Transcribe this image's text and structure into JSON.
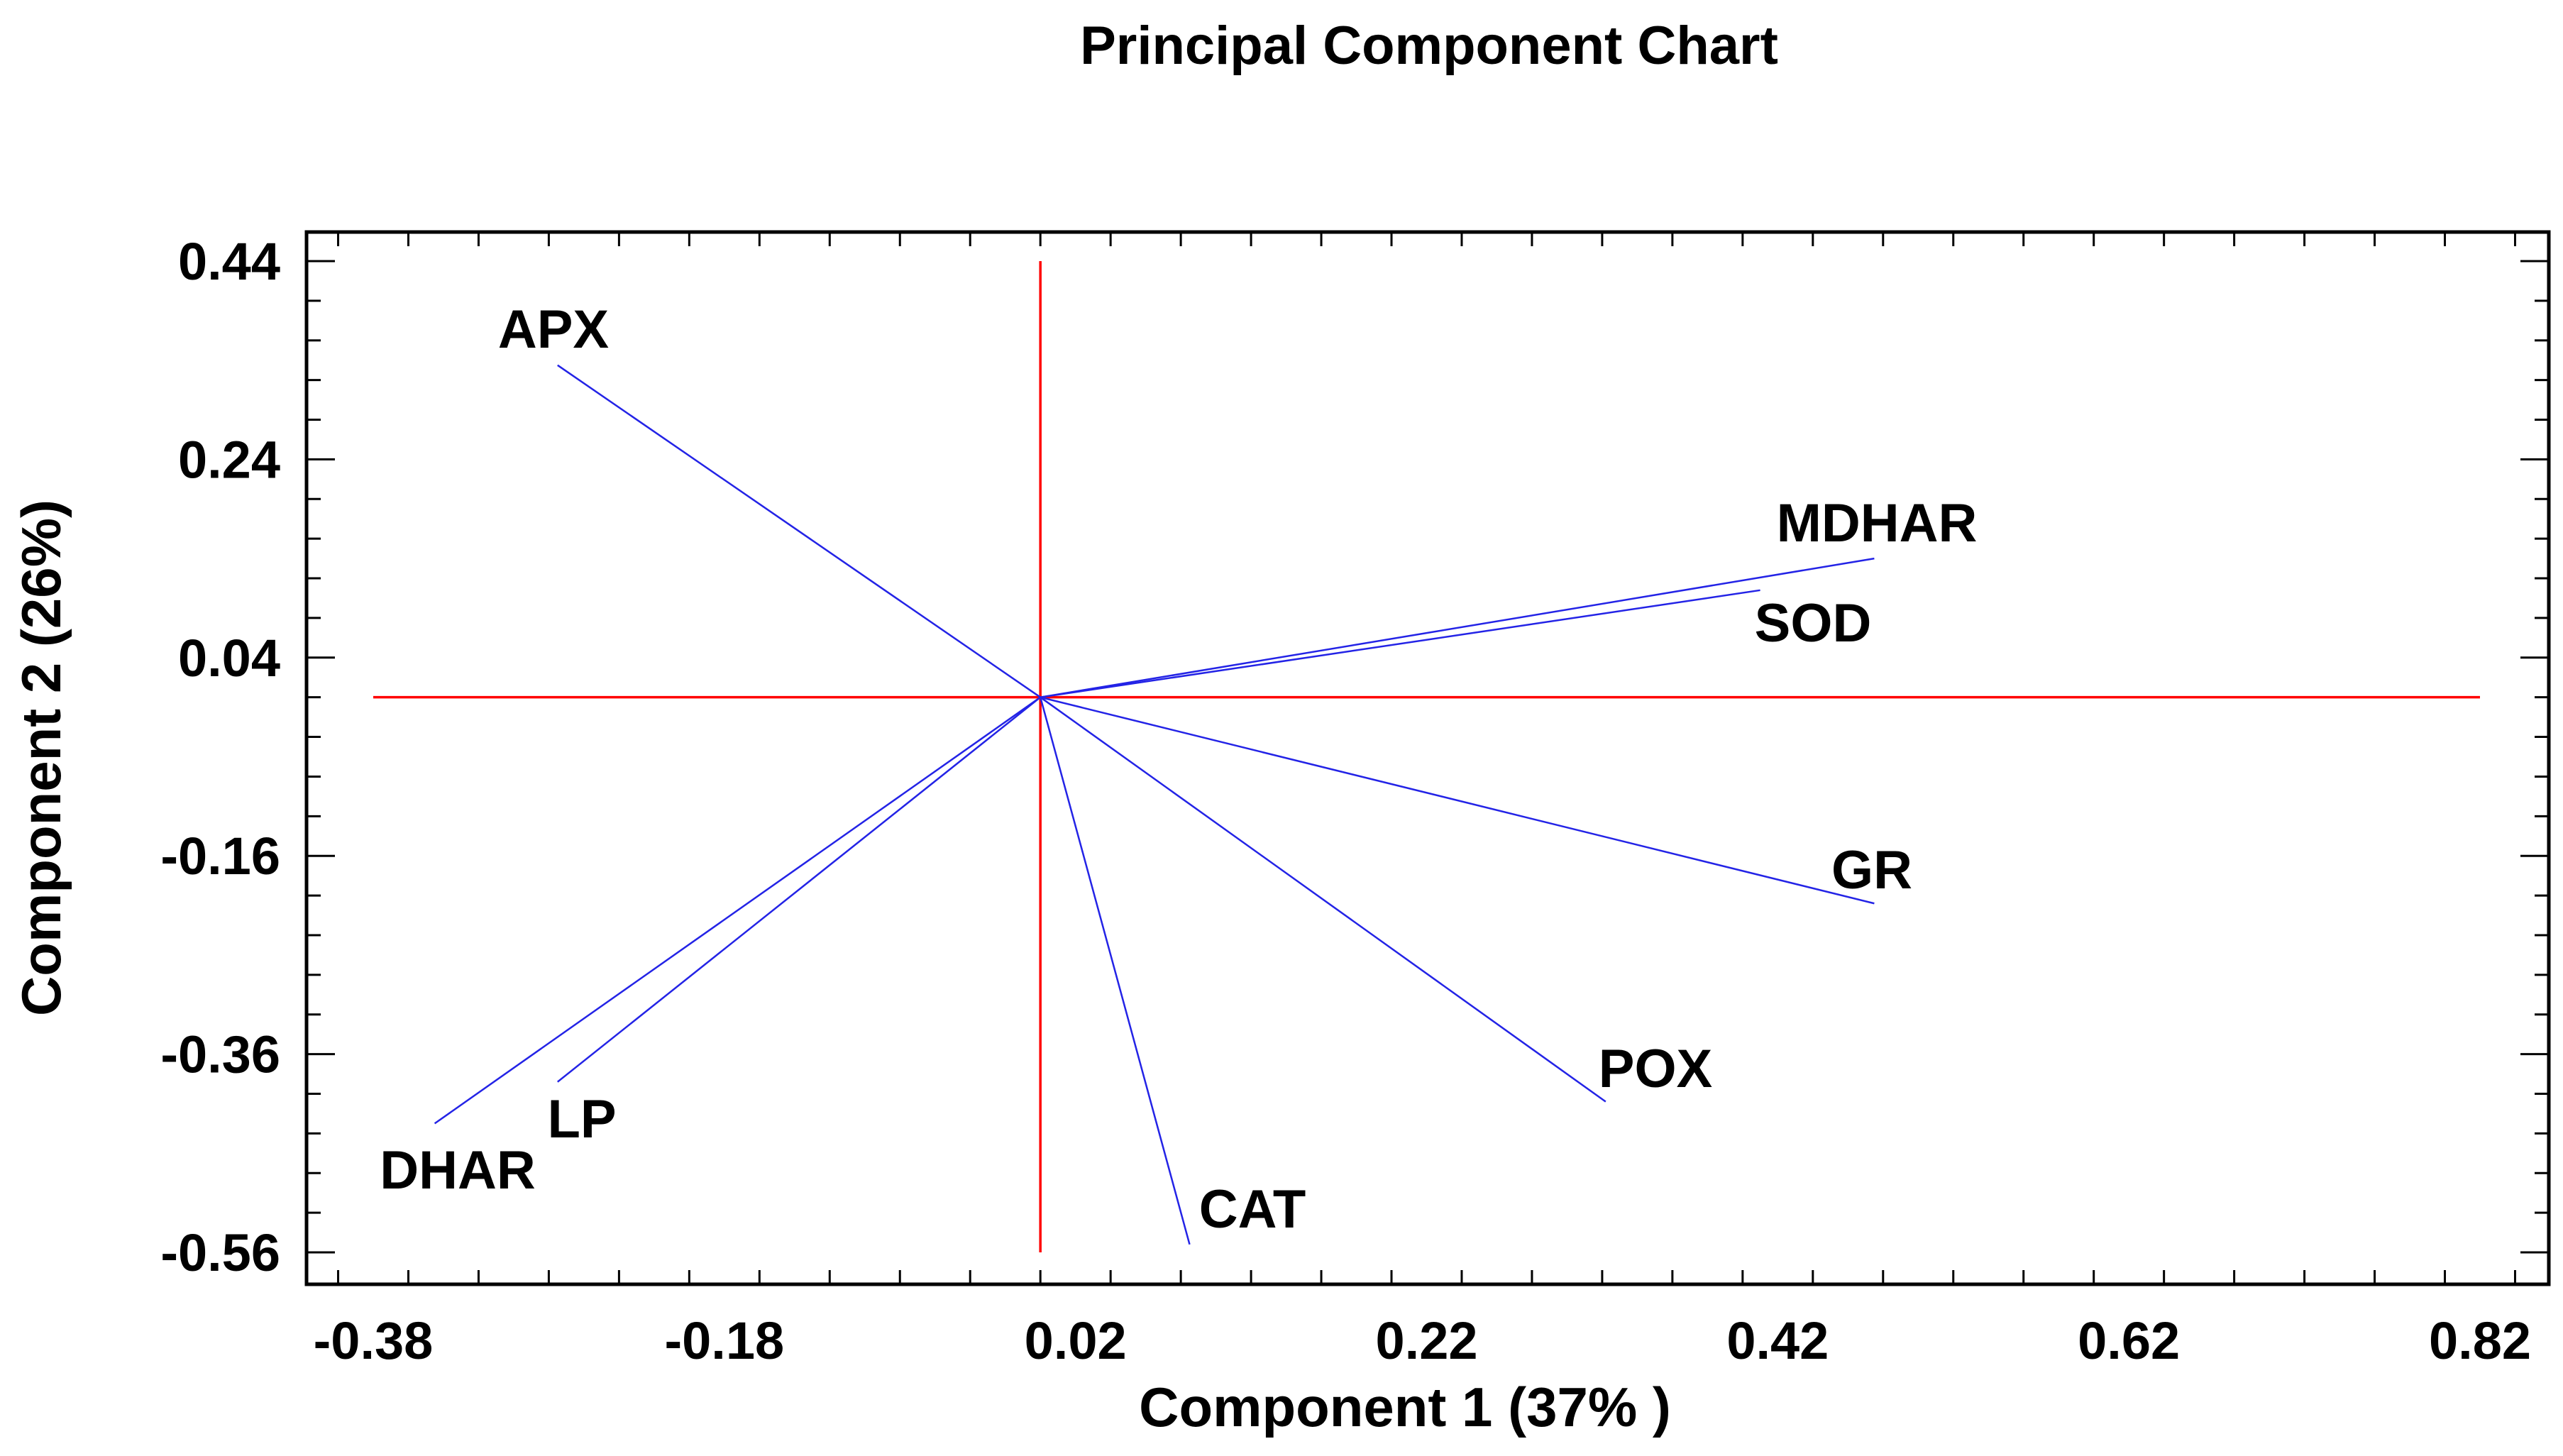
{
  "chart_data": {
    "type": "scatter",
    "subtype": "biplot-vectors",
    "title": "Principal Component Chart",
    "xlabel": "Component 1 (37% )",
    "ylabel": "Component 2 (26%)",
    "xlim": [
      -0.4,
      0.84
    ],
    "ylim": [
      -0.59,
      0.47
    ],
    "xticks": [
      -0.38,
      -0.18,
      0.02,
      0.22,
      0.42,
      0.62,
      0.82
    ],
    "xtick_labels": [
      "-0.38",
      "-0.18",
      "0.02",
      "0.22",
      "0.42",
      "0.62",
      "0.82"
    ],
    "yticks": [
      0.44,
      0.24,
      0.04,
      -0.16,
      -0.36,
      -0.56
    ],
    "ytick_labels": [
      "0.44",
      "0.24",
      "0.04",
      "-0.16",
      "-0.36",
      "-0.56"
    ],
    "origin": [
      0.0,
      0.0
    ],
    "reference_lines": {
      "horizontal": {
        "y": 0.0,
        "x_range": [
          -0.38,
          0.82
        ]
      },
      "vertical": {
        "x": 0.0,
        "y_range": [
          -0.56,
          0.44
        ]
      }
    },
    "vectors": [
      {
        "name": "APX",
        "x": -0.275,
        "y": 0.335,
        "label_anchor": "top-left"
      },
      {
        "name": "MDHAR",
        "x": 0.475,
        "y": 0.14,
        "label_anchor": "top"
      },
      {
        "name": "SOD",
        "x": 0.41,
        "y": 0.108,
        "label_anchor": "below"
      },
      {
        "name": "GR",
        "x": 0.475,
        "y": -0.208,
        "label_anchor": "above"
      },
      {
        "name": "POX",
        "x": 0.322,
        "y": -0.408,
        "label_anchor": "above"
      },
      {
        "name": "CAT",
        "x": 0.085,
        "y": -0.552,
        "label_anchor": "right"
      },
      {
        "name": "LP",
        "x": -0.275,
        "y": -0.388,
        "label_anchor": "below"
      },
      {
        "name": "DHAR",
        "x": -0.345,
        "y": -0.43,
        "label_anchor": "below"
      }
    ],
    "grid": false,
    "legend": null
  },
  "colors": {
    "vector": "#2323e6",
    "reference": "#ff0000",
    "frame": "#000000",
    "background": "#ffffff"
  }
}
